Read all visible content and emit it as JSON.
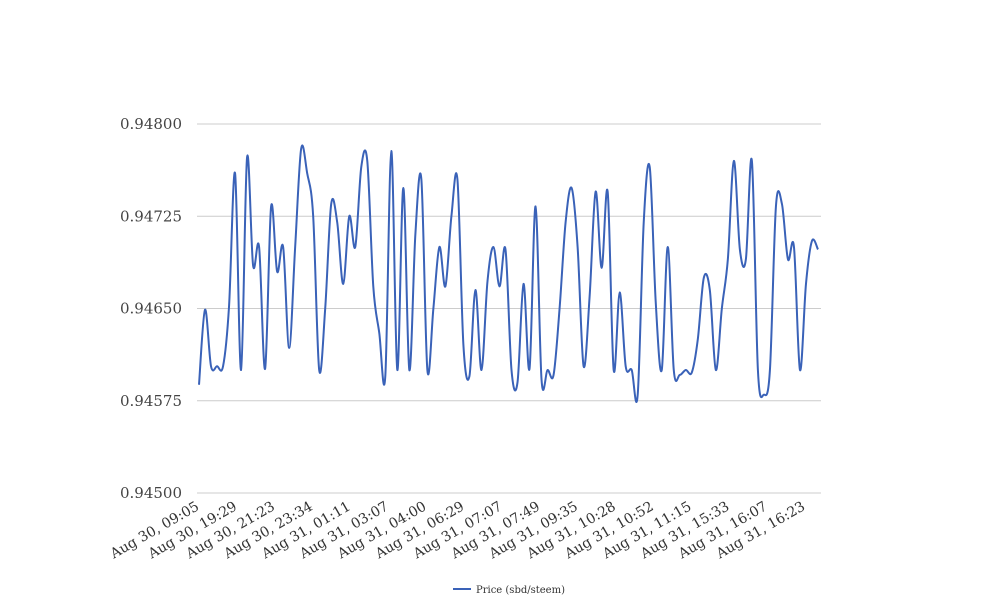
{
  "chart_data": {
    "type": "line",
    "title": "",
    "xlabel": "",
    "ylabel": "",
    "ylim": [
      0.945,
      0.948
    ],
    "yticks": [
      "0.94500",
      "0.94575",
      "0.94650",
      "0.94725",
      "0.94800"
    ],
    "xticks": [
      "Aug 30, 09:05",
      "Aug 30, 19:29",
      "Aug 30, 21:23",
      "Aug 30, 23:34",
      "Aug 31, 01:11",
      "Aug 31, 03:07",
      "Aug 31, 04:00",
      "Aug 31, 06:29",
      "Aug 31, 07:07",
      "Aug 31, 07:49",
      "Aug 31, 09:35",
      "Aug 31, 10:28",
      "Aug 31, 10:52",
      "Aug 31, 11:15",
      "Aug 31, 15:33",
      "Aug 31, 16:07",
      "Aug 31, 16:23"
    ],
    "grid": true,
    "legend_position": "bottom",
    "series": [
      {
        "name": "Price (sbd/steem)",
        "color": "#3a62b8",
        "values": [
          0.94588,
          0.94649,
          0.94603,
          0.94603,
          0.94603,
          0.94652,
          0.9476,
          0.946,
          0.94773,
          0.94685,
          0.947,
          0.94601,
          0.94733,
          0.9468,
          0.947,
          0.94618,
          0.947,
          0.9478,
          0.9476,
          0.94725,
          0.946,
          0.9465,
          0.94735,
          0.9472,
          0.9467,
          0.94725,
          0.947,
          0.94765,
          0.9477,
          0.94668,
          0.9463,
          0.94595,
          0.94778,
          0.946,
          0.94748,
          0.946,
          0.9471,
          0.94755,
          0.946,
          0.9465,
          0.947,
          0.94668,
          0.94725,
          0.94755,
          0.9462,
          0.94595,
          0.94665,
          0.946,
          0.94672,
          0.947,
          0.94668,
          0.94698,
          0.946,
          0.9459,
          0.9467,
          0.94601,
          0.94733,
          0.94592,
          0.946,
          0.94596,
          0.9465,
          0.9472,
          0.94748,
          0.947,
          0.94603,
          0.9466,
          0.94745,
          0.94683,
          0.94745,
          0.946,
          0.94663,
          0.94603,
          0.946,
          0.9458,
          0.9472,
          0.94765,
          0.94655,
          0.946,
          0.947,
          0.946,
          0.94596,
          0.946,
          0.94598,
          0.94625,
          0.94675,
          0.94665,
          0.946,
          0.9465,
          0.9469,
          0.9477,
          0.94698,
          0.9469,
          0.9477,
          0.946,
          0.9458,
          0.946,
          0.94733,
          0.94735,
          0.9469,
          0.947,
          0.946,
          0.9467,
          0.94705,
          0.94698
        ]
      }
    ]
  }
}
